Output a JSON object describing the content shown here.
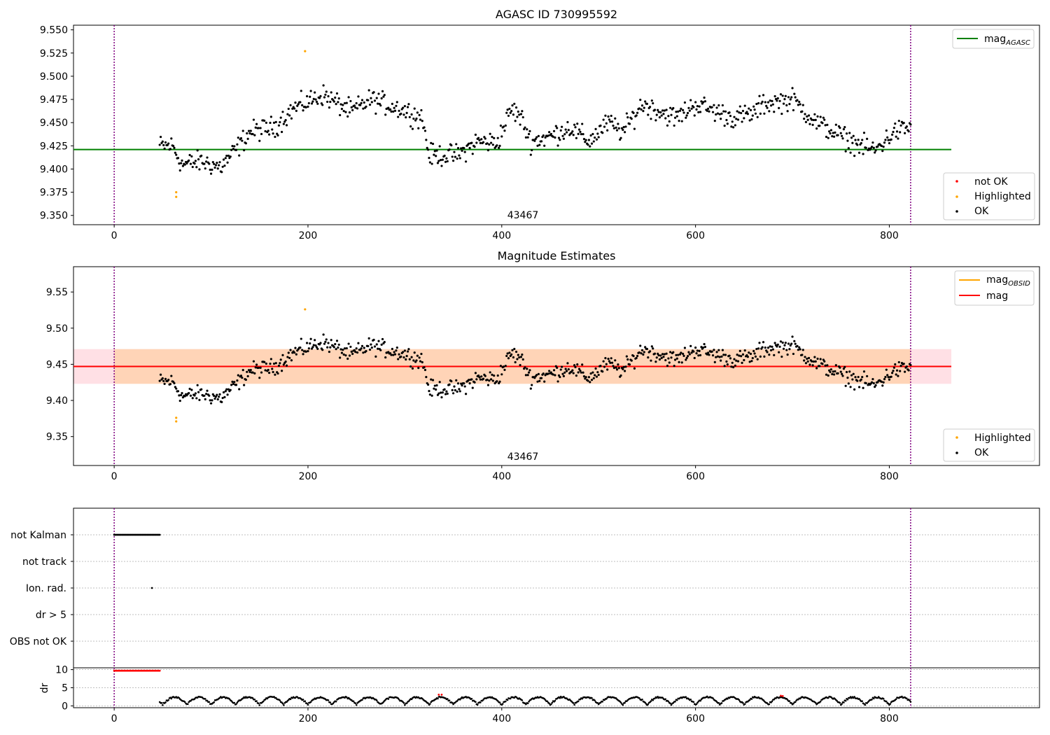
{
  "chart_data": [
    {
      "type": "scatter",
      "title": "AGASC ID 730995592",
      "xlim": [
        -42,
        955
      ],
      "ylim": [
        9.34,
        9.555
      ],
      "xticks": [
        "0",
        "200",
        "400",
        "600",
        "800"
      ],
      "xtick_values": [
        0,
        200,
        400,
        600,
        800
      ],
      "yticks": [
        "9.350",
        "9.375",
        "9.400",
        "9.425",
        "9.450",
        "9.475",
        "9.500",
        "9.525",
        "9.550"
      ],
      "ytick_values": [
        9.35,
        9.375,
        9.4,
        9.425,
        9.45,
        9.475,
        9.5,
        9.525,
        9.55
      ],
      "vlines": [
        0,
        822
      ],
      "obsid_label": "43467",
      "obsid_x": 411,
      "hline": {
        "name": "mag",
        "subscript": "AGASC",
        "value": 9.421,
        "x_range": [
          -42,
          864
        ],
        "color": "#008000"
      },
      "highlighted_points": [
        [
          64,
          9.375
        ],
        [
          64,
          9.37
        ],
        [
          197,
          9.527
        ]
      ],
      "not_ok_points": [],
      "legend_lines": [
        {
          "name": "mag",
          "subscript": "AGASC",
          "color": "#008000"
        }
      ],
      "legend_points": [
        {
          "name": "not OK",
          "color": "#ff0000"
        },
        {
          "name": "Highlighted",
          "color": "#ffa500"
        },
        {
          "name": "OK",
          "color": "#000000"
        }
      ],
      "ok_series": {
        "x_start": 47,
        "x_end": 822,
        "trend": [
          [
            47,
            9.425
          ],
          [
            60,
            9.425
          ],
          [
            70,
            9.405
          ],
          [
            90,
            9.408
          ],
          [
            110,
            9.402
          ],
          [
            125,
            9.42
          ],
          [
            140,
            9.44
          ],
          [
            165,
            9.445
          ],
          [
            185,
            9.465
          ],
          [
            215,
            9.48
          ],
          [
            245,
            9.462
          ],
          [
            265,
            9.475
          ],
          [
            295,
            9.465
          ],
          [
            318,
            9.455
          ],
          [
            325,
            9.415
          ],
          [
            355,
            9.415
          ],
          [
            375,
            9.43
          ],
          [
            395,
            9.428
          ],
          [
            410,
            9.465
          ],
          [
            420,
            9.455
          ],
          [
            430,
            9.43
          ],
          [
            450,
            9.435
          ],
          [
            470,
            9.445
          ],
          [
            490,
            9.43
          ],
          [
            510,
            9.45
          ],
          [
            525,
            9.44
          ],
          [
            545,
            9.47
          ],
          [
            580,
            9.455
          ],
          [
            600,
            9.47
          ],
          [
            640,
            9.455
          ],
          [
            660,
            9.46
          ],
          [
            670,
            9.47
          ],
          [
            700,
            9.475
          ],
          [
            725,
            9.45
          ],
          [
            760,
            9.43
          ],
          [
            785,
            9.42
          ],
          [
            805,
            9.44
          ],
          [
            822,
            9.445
          ]
        ]
      }
    },
    {
      "type": "scatter",
      "title": "Magnitude Estimates",
      "xlim": [
        -42,
        955
      ],
      "ylim": [
        9.31,
        9.585
      ],
      "xticks": [
        "0",
        "200",
        "400",
        "600",
        "800"
      ],
      "xtick_values": [
        0,
        200,
        400,
        600,
        800
      ],
      "yticks": [
        "9.35",
        "9.40",
        "9.45",
        "9.50",
        "9.55"
      ],
      "ytick_values": [
        9.35,
        9.4,
        9.45,
        9.5,
        9.55
      ],
      "vlines": [
        0,
        822
      ],
      "obsid_label": "43467",
      "obsid_x": 411,
      "mag_line": {
        "name": "mag",
        "value": 9.447,
        "band": [
          9.423,
          9.471
        ],
        "x_range": [
          -42,
          864
        ],
        "color": "#ff0000"
      },
      "obsid_line": {
        "name": "mag",
        "subscript": "OBSID",
        "value": 9.447,
        "band": [
          9.423,
          9.471
        ],
        "x_range": [
          0,
          822
        ],
        "color": "#ffa500"
      },
      "highlighted_points": [
        [
          64,
          9.376
        ],
        [
          64,
          9.371
        ],
        [
          197,
          9.526
        ]
      ],
      "legend_lines": [
        {
          "name": "mag",
          "subscript": "OBSID",
          "color": "#ffa500"
        },
        {
          "name": "mag",
          "subscript": "",
          "color": "#ff0000"
        }
      ],
      "legend_points": [
        {
          "name": "Highlighted",
          "color": "#ffa500"
        },
        {
          "name": "OK",
          "color": "#000000"
        }
      ]
    },
    {
      "type": "scatter",
      "title": "",
      "xlim": [
        -42,
        955
      ],
      "categories": [
        "not Kalman",
        "not track",
        "Ion. rad.",
        "dr > 5",
        "OBS not OK"
      ],
      "vlines": [
        0,
        822
      ],
      "flag_not_kalman_x": [
        0,
        47
      ],
      "flag_ion_rad_x": [
        39
      ]
    },
    {
      "type": "scatter",
      "title": "",
      "ylabel": "dr",
      "xlim": [
        -42,
        955
      ],
      "ylim": [
        -0.5,
        10.5
      ],
      "xticks": [
        "0",
        "200",
        "400",
        "600",
        "800"
      ],
      "xtick_values": [
        0,
        200,
        400,
        600,
        800
      ],
      "yticks": [
        "0",
        "5",
        "10"
      ],
      "ytick_values": [
        0,
        5,
        10
      ],
      "vlines": [
        0,
        822
      ],
      "red_flat": {
        "x_range": [
          0,
          47
        ],
        "value": 9.7
      },
      "red_small": [
        [
          335,
          3.1
        ],
        [
          338,
          3.1
        ],
        [
          688,
          2.8
        ],
        [
          690,
          2.7
        ]
      ]
    }
  ]
}
